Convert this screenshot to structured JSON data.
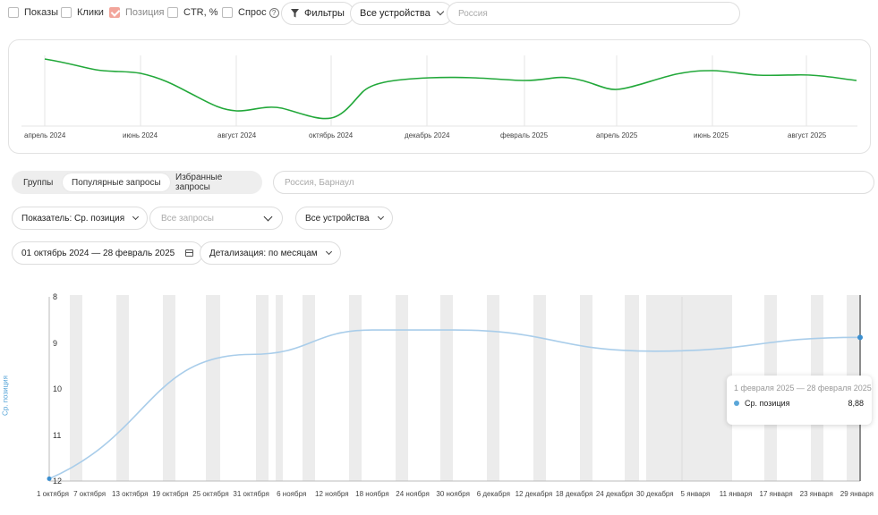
{
  "top_filters": {
    "checkboxes": [
      {
        "label": "Показы",
        "checked": false
      },
      {
        "label": "Клики",
        "checked": false
      },
      {
        "label": "Позиция",
        "checked": true
      },
      {
        "label": "CTR, %",
        "checked": false
      },
      {
        "label": "Спрос",
        "checked": false
      }
    ],
    "help_glyph": "?",
    "filters_button": "Фильтры",
    "devices_select": "Все устройства",
    "region_placeholder": "Россия"
  },
  "overview_chart": {
    "x_labels": [
      "апрель 2024",
      "июнь 2024",
      "август 2024",
      "октябрь 2024",
      "декабрь 2024",
      "февраль 2025",
      "апрель 2025",
      "июнь 2025",
      "август 2025"
    ],
    "line_color": "#22a83a"
  },
  "tabs": {
    "items": [
      "Группы",
      "Популярные запросы",
      "Избранные запросы"
    ],
    "active_index": 1
  },
  "region2_placeholder": "Россия, Барнаул",
  "controls": {
    "metric_select": "Показатель: Ср. позиция",
    "queries_placeholder": "Все запросы",
    "devices_select": "Все устройства",
    "date_range": "01 октябрь 2024 — 28 февраль 2025",
    "detail_select": "Детализация: по месяцам"
  },
  "chart_data": {
    "type": "line",
    "ylabel": "Ср. позиция",
    "y_ticks": [
      "8",
      "9",
      "10",
      "11",
      "12"
    ],
    "ylim": [
      8,
      12
    ],
    "y_inverted": true,
    "x_tick_labels": [
      "1 октября",
      "7 октября",
      "13 октября",
      "19 октября",
      "25 октября",
      "31 октября",
      "6 ноября",
      "12 ноября",
      "18 ноября",
      "24 ноября",
      "30 ноября",
      "6 декабря",
      "12 декабря",
      "18 декабря",
      "24 декабря",
      "30 декабря",
      "5 января",
      "11 января",
      "17 января",
      "23 января",
      "29 января"
    ],
    "series": [
      {
        "name": "Ср. позиция",
        "color": "#a9cdea",
        "x": [
          "1 октября",
          "31 октября",
          "18 ноября",
          "30 ноября",
          "30 декабря",
          "1 февраля"
        ],
        "values": [
          11.95,
          9.25,
          8.72,
          8.72,
          9.18,
          8.88
        ]
      }
    ],
    "tooltip": {
      "period": "1 февраля 2025 — 28 февраля 2025",
      "series_name": "Ср. позиция",
      "value": "8,88"
    }
  }
}
